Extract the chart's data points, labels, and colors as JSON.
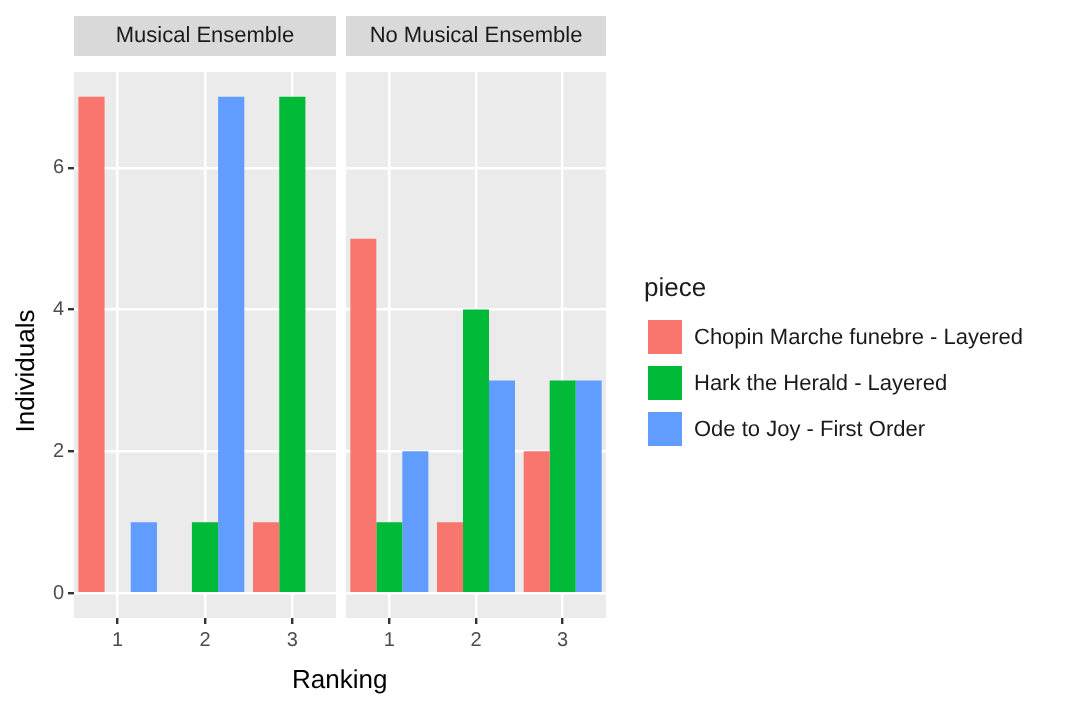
{
  "chart_data": [
    {
      "type": "bar",
      "title": "Musical Ensemble",
      "xlabel": "Ranking",
      "ylabel": "Individuals",
      "categories": [
        "1",
        "2",
        "3"
      ],
      "ylim": [
        -0.35,
        7.35
      ],
      "yticks": [
        0,
        2,
        4,
        6
      ],
      "grid": true,
      "legend": "right",
      "legend_title": "piece",
      "series": [
        {
          "name": "Chopin Marche funebre - Layered",
          "color": "#f8766d",
          "values": [
            7,
            0,
            1
          ]
        },
        {
          "name": "Hark the Herald - Layered",
          "color": "#00ba38",
          "values": [
            0,
            1,
            7
          ]
        },
        {
          "name": "Ode to Joy - First Order",
          "color": "#619cff",
          "values": [
            1,
            7,
            0
          ]
        }
      ]
    },
    {
      "type": "bar",
      "title": "No Musical Ensemble",
      "categories": [
        "1",
        "2",
        "3"
      ],
      "ylim": [
        -0.35,
        7.35
      ],
      "yticks": [
        0,
        2,
        4,
        6
      ],
      "grid": true,
      "legend": "right",
      "tick_labels": "x",
      "series": [
        {
          "name": "Chopin Marche funebre - Layered",
          "color": "#f8766d",
          "values": [
            5,
            1,
            2
          ]
        },
        {
          "name": "Hark the Herald - Layered",
          "color": "#00ba38",
          "values": [
            1,
            4,
            3
          ]
        },
        {
          "name": "Ode to Joy - First Order",
          "color": "#619cff",
          "values": [
            2,
            3,
            3
          ]
        }
      ]
    }
  ]
}
